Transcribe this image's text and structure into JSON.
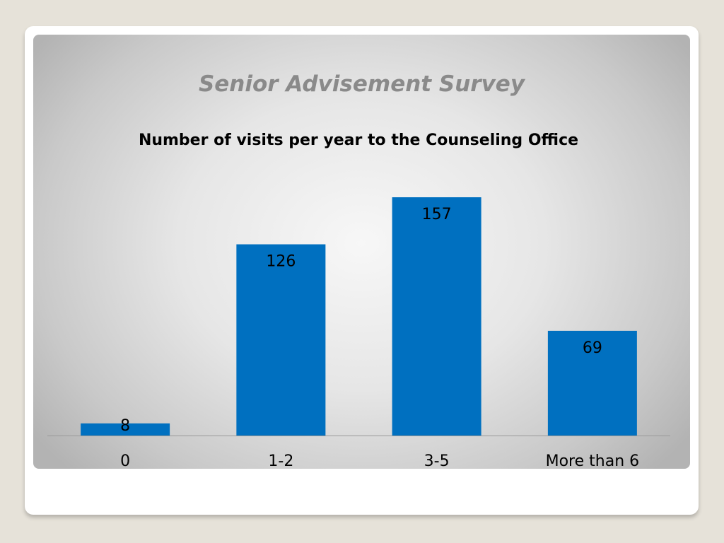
{
  "slide": {
    "title": "Senior Advisement Survey"
  },
  "colors": {
    "bar": "#0070c0",
    "axis": "#999999",
    "title": "#8a8a8a",
    "text": "#000000"
  },
  "chart_data": {
    "type": "bar",
    "title": "Number of visits per year to the Counseling Office",
    "categories": [
      "0",
      "1-2",
      "3-5",
      "More than 6"
    ],
    "values": [
      8,
      126,
      157,
      69
    ],
    "data_labels": [
      "8",
      "126",
      "157",
      "69"
    ],
    "xlabel": "",
    "ylabel": "",
    "ylim": [
      0,
      157
    ],
    "grid": false,
    "legend": "none"
  }
}
